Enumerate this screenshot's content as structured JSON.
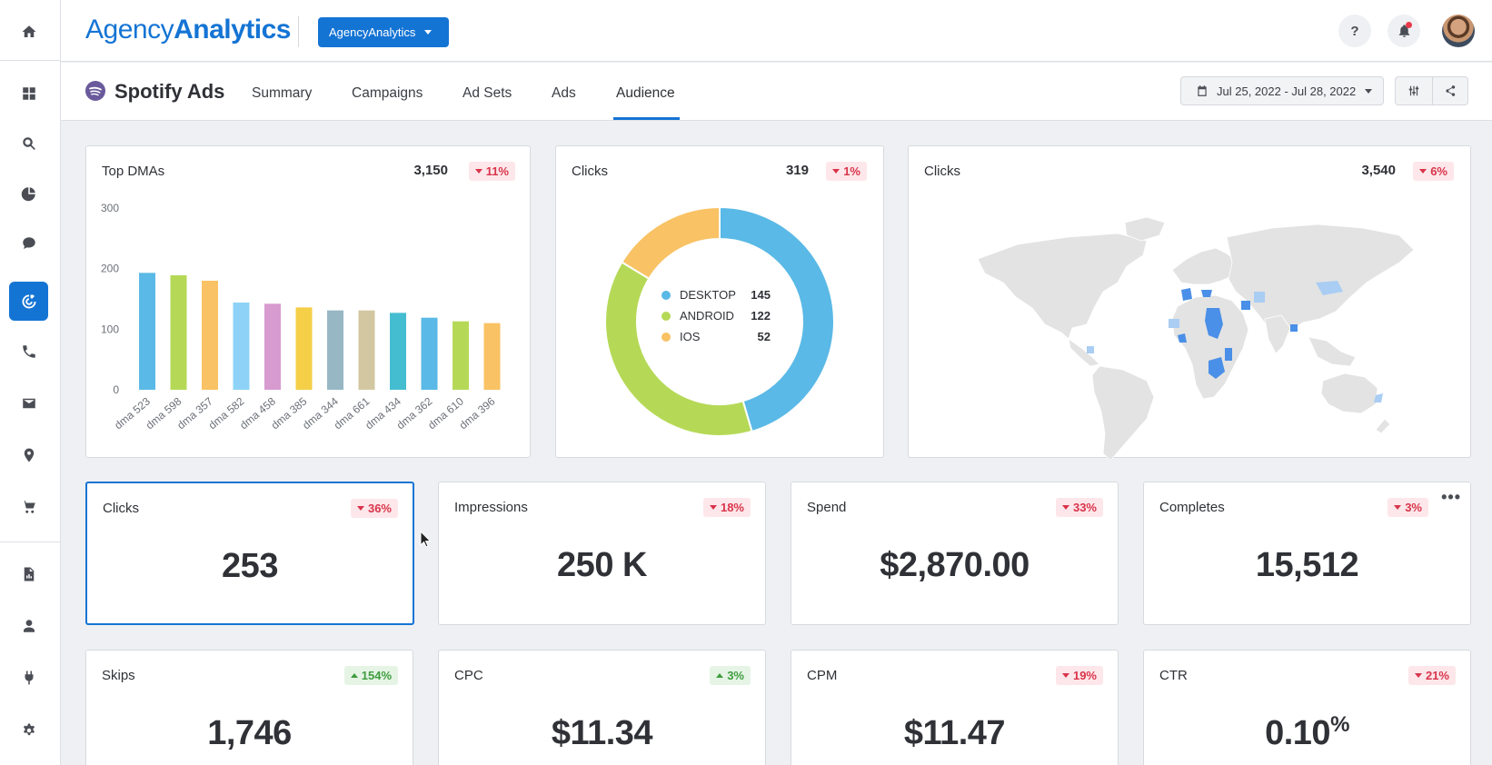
{
  "app": {
    "logo_light": "Agency",
    "logo_bold": "Analytics",
    "agency_selector": "AgencyAnalytics",
    "help_label": "?",
    "accent": "#1474d4"
  },
  "nav": {
    "items": [
      {
        "name": "home-icon"
      },
      {
        "name": "dashboard-icon"
      },
      {
        "name": "search-icon"
      },
      {
        "name": "pie-chart-icon"
      },
      {
        "name": "chat-icon"
      },
      {
        "name": "target-icon",
        "active": true
      },
      {
        "name": "phone-icon"
      },
      {
        "name": "mail-icon"
      },
      {
        "name": "location-pin-icon"
      },
      {
        "name": "cart-icon"
      },
      {
        "name": "report-icon"
      },
      {
        "name": "user-icon"
      },
      {
        "name": "plug-icon"
      },
      {
        "name": "gear-icon"
      }
    ]
  },
  "subheader": {
    "title": "Spotify Ads",
    "tabs": [
      {
        "label": "Summary"
      },
      {
        "label": "Campaigns"
      },
      {
        "label": "Ad Sets"
      },
      {
        "label": "Ads"
      },
      {
        "label": "Audience",
        "active": true
      }
    ],
    "date_range": "Jul 25, 2022 - Jul 28, 2022"
  },
  "widgets": {
    "top_dmas": {
      "title": "Top DMAs",
      "total": "3,150",
      "change": "11%",
      "direction": "down"
    },
    "clicks_device": {
      "title": "Clicks",
      "total": "319",
      "change": "1%",
      "direction": "down"
    },
    "clicks_map": {
      "title": "Clicks",
      "total": "3,540",
      "change": "6%",
      "direction": "down"
    }
  },
  "kpis": [
    {
      "title": "Clicks",
      "value": "253",
      "change": "36%",
      "direction": "down"
    },
    {
      "title": "Impressions",
      "value": "250 K",
      "change": "18%",
      "direction": "down"
    },
    {
      "title": "Spend",
      "value": "$2,870.00",
      "change": "33%",
      "direction": "down"
    },
    {
      "title": "Completes",
      "value": "15,512",
      "change": "3%",
      "direction": "down",
      "more": "•••"
    },
    {
      "title": "Skips",
      "value": "1,746",
      "change": "154%",
      "direction": "up"
    },
    {
      "title": "CPC",
      "value": "$11.34",
      "change": "3%",
      "direction": "up"
    },
    {
      "title": "CPM",
      "value": "$11.47",
      "change": "19%",
      "direction": "down"
    },
    {
      "title": "CTR",
      "value": "0.10",
      "unit": "%",
      "change": "21%",
      "direction": "down"
    }
  ],
  "chart_data": [
    {
      "type": "bar",
      "title": "Top DMAs",
      "categories": [
        "dma 523",
        "dma 598",
        "dma 357",
        "dma 582",
        "dma 458",
        "dma 385",
        "dma 344",
        "dma 661",
        "dma 434",
        "dma 362",
        "dma 610",
        "dma 396"
      ],
      "values": [
        193,
        189,
        180,
        144,
        142,
        136,
        131,
        131,
        127,
        119,
        113,
        110
      ],
      "colors": [
        "#5ab9e6",
        "#b5d957",
        "#f9c264",
        "#8ed3f7",
        "#d79bd0",
        "#f4cf47",
        "#97b7c4",
        "#d2c7a1",
        "#45bdd0",
        "#5ab9e6",
        "#b5d957",
        "#f9c264"
      ],
      "yticks": [
        0,
        100,
        200,
        300
      ],
      "ylim": [
        0,
        300
      ],
      "grid": false
    },
    {
      "type": "pie",
      "title": "Clicks",
      "donut": true,
      "slices": [
        {
          "label": "DESKTOP",
          "value": 145,
          "color": "#5ab9e6"
        },
        {
          "label": "ANDROID",
          "value": 122,
          "color": "#b5d957"
        },
        {
          "label": "IOS",
          "value": 52,
          "color": "#f9c264"
        }
      ],
      "legend": "center"
    }
  ]
}
